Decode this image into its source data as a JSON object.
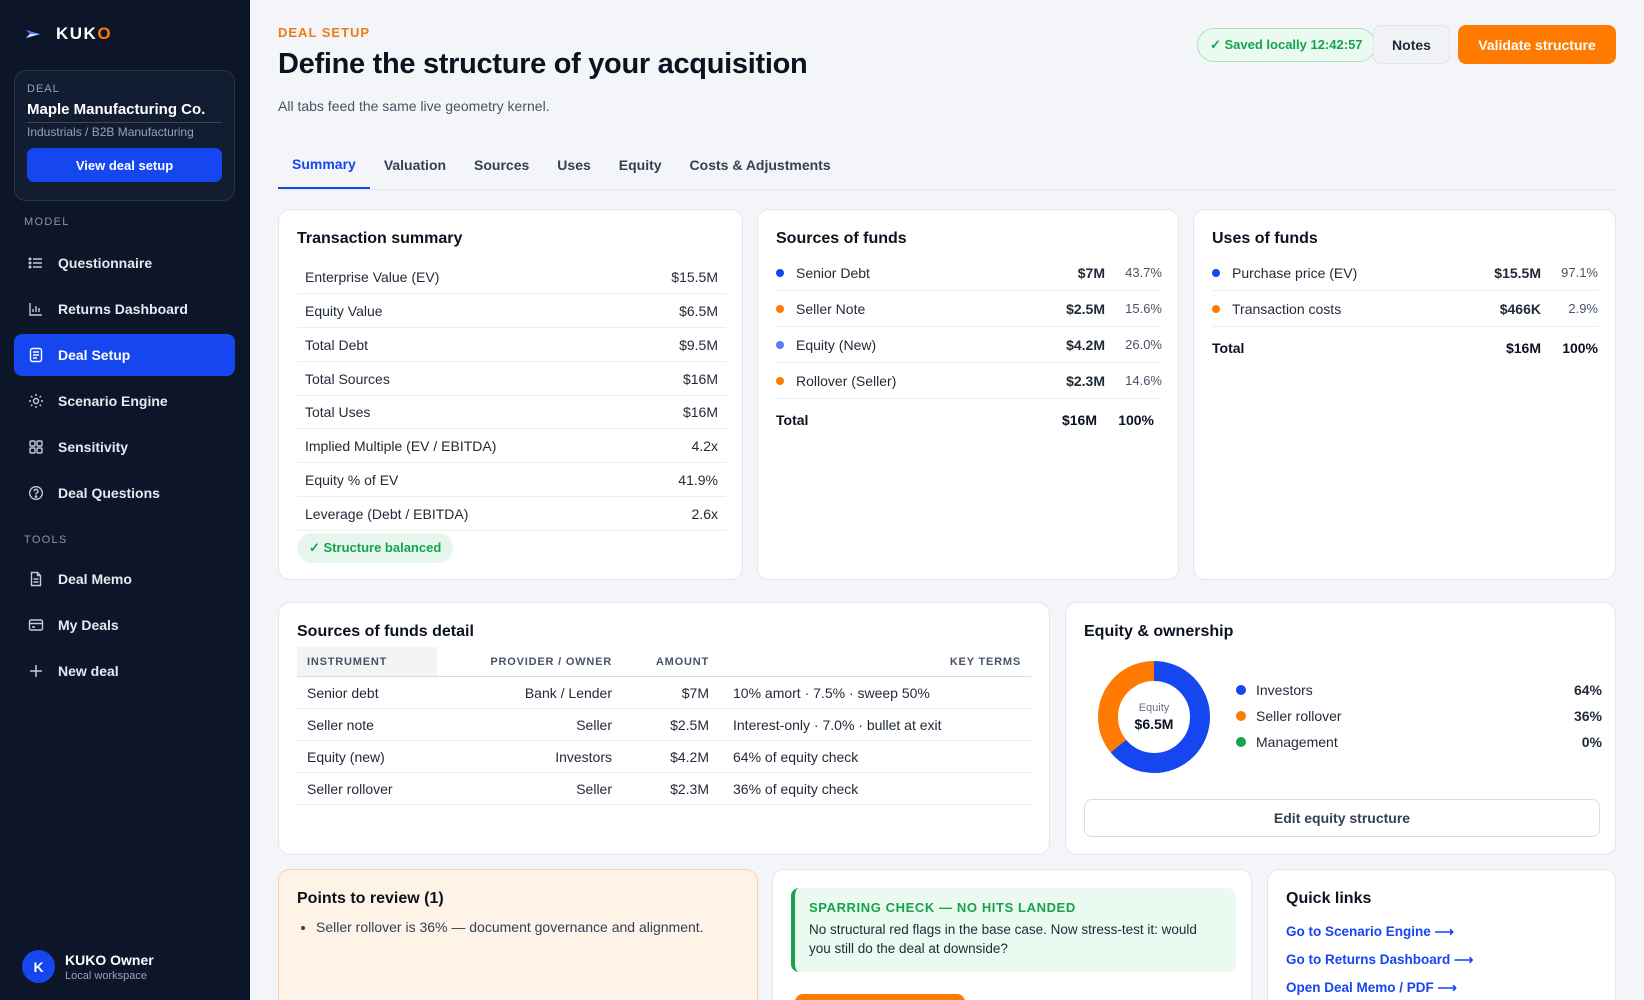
{
  "brand": {
    "name_main": "KUK",
    "name_accent": "O"
  },
  "deal": {
    "label": "DEAL",
    "name": "Maple Manufacturing Co.",
    "industry": "Industrials / B2B Manufacturing",
    "button": "View deal setup"
  },
  "sidebar": {
    "model_label": "MODEL",
    "tools_label": "TOOLS",
    "model_items": [
      {
        "label": "Questionnaire",
        "icon": "list-icon"
      },
      {
        "label": "Returns Dashboard",
        "icon": "bar-chart-icon"
      },
      {
        "label": "Deal Setup",
        "icon": "document-icon",
        "active": true
      },
      {
        "label": "Scenario Engine",
        "icon": "sun-icon"
      },
      {
        "label": "Sensitivity",
        "icon": "grid-icon"
      },
      {
        "label": "Deal Questions",
        "icon": "help-circle-icon"
      }
    ],
    "tool_items": [
      {
        "label": "Deal Memo",
        "icon": "file-icon"
      },
      {
        "label": "My Deals",
        "icon": "card-icon"
      },
      {
        "label": "New deal",
        "icon": "plus-icon"
      }
    ]
  },
  "user": {
    "initial": "K",
    "name": "KUKO Owner",
    "workspace": "Local workspace"
  },
  "header": {
    "eyebrow": "DEAL SETUP",
    "title": "Define the structure of your acquisition",
    "subtitle": "All tabs feed the same live geometry kernel.",
    "saved": "✓ Saved locally 12:42:57",
    "notes": "Notes",
    "validate": "Validate structure"
  },
  "tabs": [
    "Summary",
    "Valuation",
    "Sources",
    "Uses",
    "Equity",
    "Costs & Adjustments"
  ],
  "active_tab": "Summary",
  "transaction_summary": {
    "title": "Transaction summary",
    "rows": [
      {
        "label": "Enterprise Value (EV)",
        "value": "$15.5M"
      },
      {
        "label": "Equity Value",
        "value": "$6.5M"
      },
      {
        "label": "Total Debt",
        "value": "$9.5M"
      },
      {
        "label": "Total Sources",
        "value": "$16M"
      },
      {
        "label": "Total Uses",
        "value": "$16M"
      },
      {
        "label": "Implied Multiple (EV / EBITDA)",
        "value": "4.2x"
      },
      {
        "label": "Equity % of EV",
        "value": "41.9%"
      },
      {
        "label": "Leverage (Debt / EBITDA)",
        "value": "2.6x"
      }
    ],
    "badge": "✓ Structure balanced"
  },
  "sources": {
    "title": "Sources of funds",
    "rows": [
      {
        "label": "Senior Debt",
        "amount": "$7M",
        "pct": "43.7%",
        "color": "#1546f0"
      },
      {
        "label": "Seller Note",
        "amount": "$2.5M",
        "pct": "15.6%",
        "color": "#ff7a00"
      },
      {
        "label": "Equity (New)",
        "amount": "$4.2M",
        "pct": "26.0%",
        "color": "#5b7cf5"
      },
      {
        "label": "Rollover (Seller)",
        "amount": "$2.3M",
        "pct": "14.6%",
        "color": "#ff7a00"
      }
    ],
    "total": {
      "label": "Total",
      "amount": "$16M",
      "pct": "100%"
    }
  },
  "uses": {
    "title": "Uses of funds",
    "rows": [
      {
        "label": "Purchase price (EV)",
        "amount": "$15.5M",
        "pct": "97.1%",
        "color": "#1546f0"
      },
      {
        "label": "Transaction costs",
        "amount": "$466K",
        "pct": "2.9%",
        "color": "#ff7a00"
      }
    ],
    "total": {
      "label": "Total",
      "amount": "$16M",
      "pct": "100%"
    }
  },
  "sources_detail": {
    "title": "Sources of funds detail",
    "headers": {
      "instrument": "INSTRUMENT",
      "provider": "PROVIDER / OWNER",
      "amount": "AMOUNT",
      "terms": "KEY TERMS"
    },
    "rows": [
      {
        "instrument": "Senior debt",
        "provider": "Bank / Lender",
        "amount": "$7M",
        "terms": "10% amort · 7.5% · sweep 50%"
      },
      {
        "instrument": "Seller note",
        "provider": "Seller",
        "amount": "$2.5M",
        "terms": "Interest-only · 7.0% · bullet at exit"
      },
      {
        "instrument": "Equity (new)",
        "provider": "Investors",
        "amount": "$4.2M",
        "terms": "64% of equity check"
      },
      {
        "instrument": "Seller rollover",
        "provider": "Seller",
        "amount": "$2.3M",
        "terms": "36% of equity check"
      }
    ]
  },
  "equity": {
    "title": "Equity & ownership",
    "center_label": "Equity",
    "center_value": "$6.5M",
    "rows": [
      {
        "label": "Investors",
        "value": "64%",
        "share": 0.64,
        "color": "#1546f0"
      },
      {
        "label": "Seller rollover",
        "value": "36%",
        "share": 0.36,
        "color": "#ff7a00"
      },
      {
        "label": "Management",
        "value": "0%",
        "share": 0,
        "color": "#16a34a"
      }
    ],
    "button": "Edit equity structure"
  },
  "review": {
    "title": "Points to review (1)",
    "items": [
      "Seller rollover is 36% — document governance and alignment."
    ]
  },
  "sparring": {
    "title": "SPARRING CHECK — NO HITS LANDED",
    "body": "No structural red flags in the base case. Now stress-test it: would you still do the deal at downside?"
  },
  "quick_links": {
    "title": "Quick links",
    "items": [
      "Go to Scenario Engine ⟶",
      "Go to Returns Dashboard ⟶",
      "Open Deal Memo / PDF ⟶"
    ]
  }
}
